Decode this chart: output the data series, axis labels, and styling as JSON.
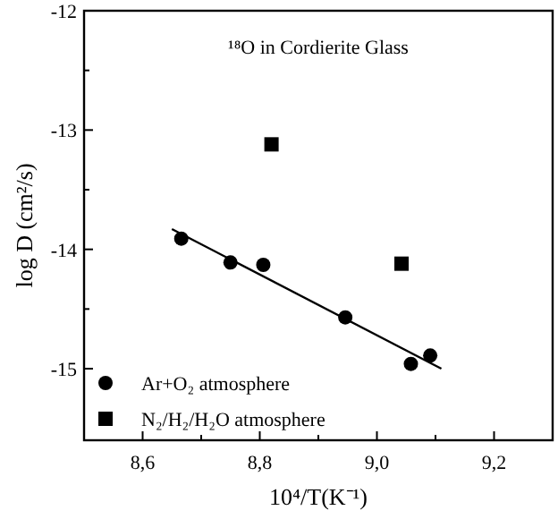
{
  "chart_data": {
    "type": "scatter",
    "title": "¹⁸O in Cordierite Glass",
    "xlabel": "10⁴/T(K⁻¹)",
    "ylabel": "log D (cm²/s)",
    "xlim": [
      8.5,
      9.3
    ],
    "ylim": [
      -15.6,
      -12
    ],
    "xticks": [
      {
        "value": 8.6,
        "label": "8,6"
      },
      {
        "value": 8.7,
        "label": null
      },
      {
        "value": 8.8,
        "label": "8,8"
      },
      {
        "value": 8.9,
        "label": null
      },
      {
        "value": 9.0,
        "label": "9,0"
      },
      {
        "value": 9.1,
        "label": null
      },
      {
        "value": 9.2,
        "label": "9,2"
      }
    ],
    "yticks": [
      -15,
      {
        "value": -14.5,
        "label": null
      },
      -14,
      {
        "value": -13.5,
        "label": null
      },
      -13,
      {
        "value": -12.5,
        "label": null
      },
      -12
    ],
    "grid": false,
    "legend": "bottom left",
    "series": [
      {
        "name": "Ar+O₂ atmosphere",
        "color": "#000000",
        "marker": "circle",
        "x": [
          8.666,
          8.75,
          8.806,
          8.946,
          9.058,
          9.091
        ],
        "values": [
          -13.91,
          -14.11,
          -14.13,
          -14.57,
          -14.96,
          -14.89
        ]
      },
      {
        "name": "N₂/H₂/H₂O atmosphere",
        "color": "#000000",
        "marker": "square",
        "x": [
          8.82,
          9.042
        ],
        "values": [
          -13.12,
          -14.12
        ]
      },
      {
        "type": "line",
        "color": "#000000",
        "marker": "none",
        "x": [
          8.65,
          9.11
        ],
        "values": [
          -13.83,
          -15.0
        ]
      }
    ]
  }
}
